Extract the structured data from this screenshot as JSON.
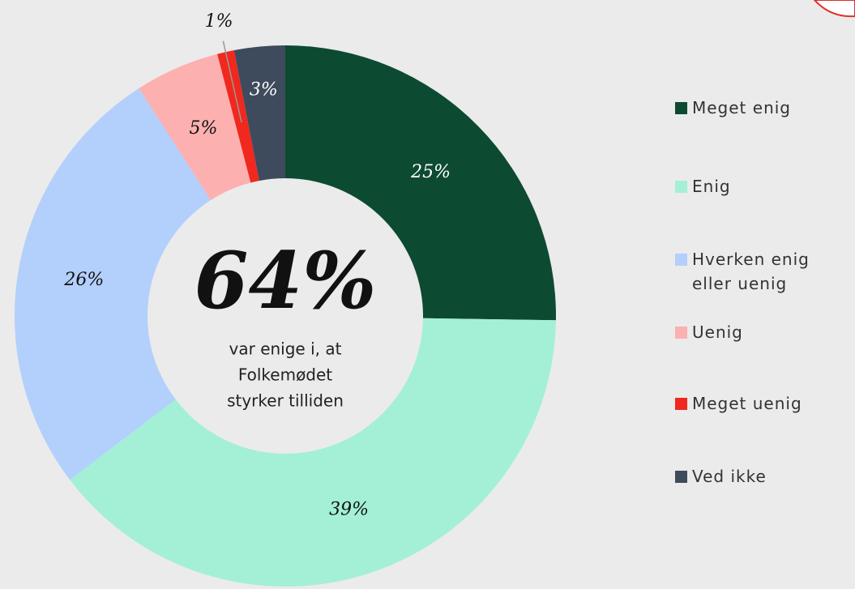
{
  "chart_data": {
    "type": "donut",
    "categories": [
      "Meget enig",
      "Enig",
      "Hverken enig eller uenig",
      "Uenig",
      "Meget uenig",
      "Ved ikke"
    ],
    "values": [
      25,
      39,
      26,
      5,
      1,
      3
    ],
    "value_labels": [
      "25%",
      "39%",
      "26%",
      "5%",
      "1%",
      "3%"
    ],
    "colors": [
      "#0d4a32",
      "#a3f0d6",
      "#b3cffc",
      "#fcb0b0",
      "#f0281e",
      "#3d4b5c"
    ],
    "center_label": "64%",
    "center_text": [
      "var enige i, at",
      "Folkemødet",
      "styrker tilliden"
    ],
    "legend": "right"
  }
}
